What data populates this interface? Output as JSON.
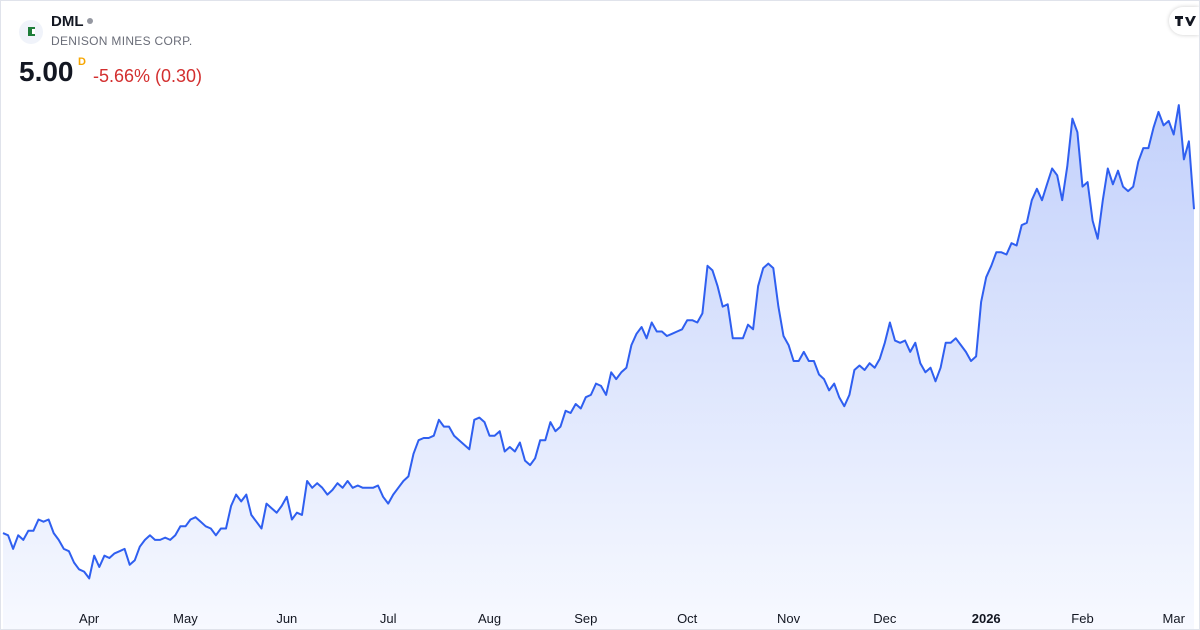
{
  "header": {
    "symbol": "DML",
    "name": "DENISON MINES CORP.",
    "price": "5.00",
    "price_flag": "D",
    "change": "-5.66% (0.30)"
  },
  "chart_data": {
    "type": "area",
    "color": "#2f5ff0",
    "values": [
      3.57,
      3.56,
      3.5,
      3.56,
      3.54,
      3.58,
      3.58,
      3.63,
      3.62,
      3.63,
      3.57,
      3.54,
      3.5,
      3.49,
      3.44,
      3.41,
      3.4,
      3.37,
      3.47,
      3.42,
      3.47,
      3.46,
      3.48,
      3.49,
      3.5,
      3.43,
      3.45,
      3.51,
      3.54,
      3.56,
      3.54,
      3.54,
      3.55,
      3.54,
      3.56,
      3.6,
      3.6,
      3.63,
      3.64,
      3.62,
      3.6,
      3.59,
      3.56,
      3.59,
      3.59,
      3.69,
      3.74,
      3.71,
      3.74,
      3.65,
      3.62,
      3.59,
      3.7,
      3.68,
      3.66,
      3.69,
      3.73,
      3.63,
      3.66,
      3.65,
      3.8,
      3.77,
      3.79,
      3.77,
      3.74,
      3.76,
      3.79,
      3.77,
      3.8,
      3.77,
      3.78,
      3.77,
      3.77,
      3.77,
      3.78,
      3.73,
      3.7,
      3.74,
      3.77,
      3.8,
      3.82,
      3.92,
      3.98,
      3.99,
      3.99,
      4.0,
      4.07,
      4.04,
      4.04,
      4.0,
      3.98,
      3.96,
      3.94,
      4.07,
      4.08,
      4.06,
      4.0,
      4.0,
      4.02,
      3.93,
      3.95,
      3.93,
      3.97,
      3.89,
      3.87,
      3.9,
      3.98,
      3.98,
      4.06,
      4.02,
      4.04,
      4.11,
      4.1,
      4.14,
      4.12,
      4.17,
      4.18,
      4.23,
      4.22,
      4.18,
      4.28,
      4.25,
      4.28,
      4.3,
      4.4,
      4.45,
      4.48,
      4.43,
      4.5,
      4.46,
      4.46,
      4.44,
      4.45,
      4.46,
      4.47,
      4.51,
      4.51,
      4.5,
      4.54,
      4.75,
      4.73,
      4.66,
      4.57,
      4.58,
      4.43,
      4.43,
      4.43,
      4.49,
      4.47,
      4.66,
      4.74,
      4.76,
      4.74,
      4.57,
      4.44,
      4.4,
      4.33,
      4.33,
      4.37,
      4.33,
      4.33,
      4.27,
      4.25,
      4.2,
      4.23,
      4.17,
      4.13,
      4.18,
      4.29,
      4.31,
      4.29,
      4.32,
      4.3,
      4.34,
      4.41,
      4.5,
      4.42,
      4.41,
      4.42,
      4.37,
      4.41,
      4.32,
      4.28,
      4.3,
      4.24,
      4.3,
      4.41,
      4.41,
      4.43,
      4.4,
      4.37,
      4.33,
      4.35,
      4.59,
      4.7,
      4.75,
      4.81,
      4.81,
      4.8,
      4.85,
      4.84,
      4.93,
      4.94,
      5.04,
      5.09,
      5.04,
      5.11,
      5.18,
      5.15,
      5.04,
      5.19,
      5.4,
      5.34,
      5.1,
      5.12,
      4.95,
      4.87,
      5.04,
      5.18,
      5.11,
      5.17,
      5.1,
      5.08,
      5.1,
      5.21,
      5.27,
      5.27,
      5.36,
      5.43,
      5.37,
      5.39,
      5.33,
      5.46,
      5.22,
      5.3,
      5.0
    ],
    "xlim": [
      0,
      235
    ],
    "xticks": [
      {
        "value": 17,
        "label": "Apr"
      },
      {
        "value": 36,
        "label": "May"
      },
      {
        "value": 56,
        "label": "Jun"
      },
      {
        "value": 76,
        "label": "Jul"
      },
      {
        "value": 96,
        "label": "Aug"
      },
      {
        "value": 115,
        "label": "Sep"
      },
      {
        "value": 135,
        "label": "Oct"
      },
      {
        "value": 155,
        "label": "Nov"
      },
      {
        "value": 174,
        "label": "Dec"
      },
      {
        "value": 194,
        "label": "2026"
      },
      {
        "value": 213,
        "label": "Feb"
      },
      {
        "value": 231,
        "label": "Mar"
      }
    ],
    "ylim": [
      3.27,
      5.5
    ]
  }
}
